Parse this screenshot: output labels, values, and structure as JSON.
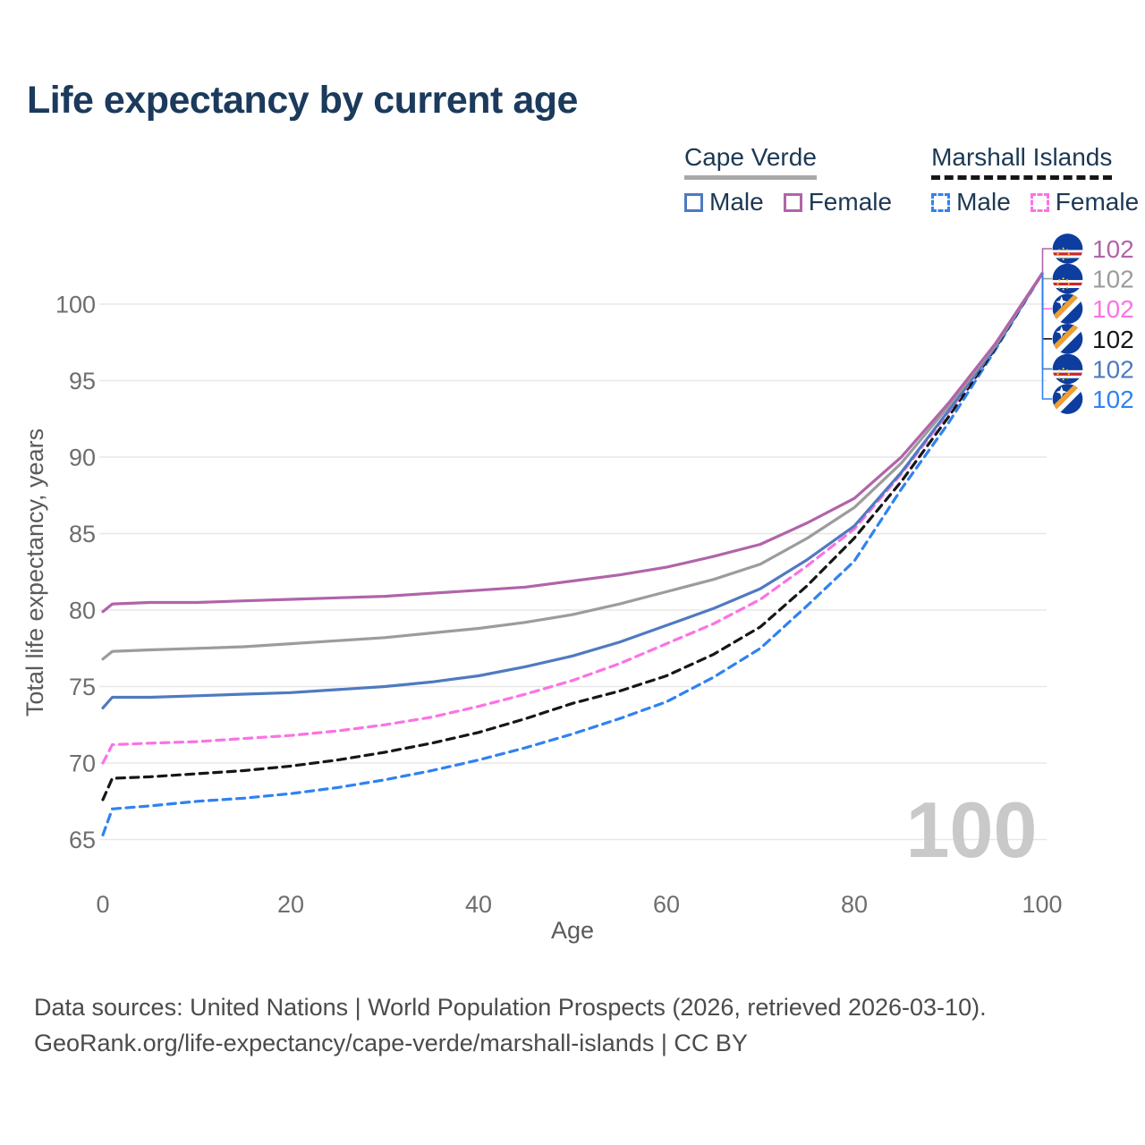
{
  "title": "Life expectancy by current age",
  "legend": {
    "groups": [
      {
        "label": "Cape Verde",
        "underline_style": "solid",
        "underline_color": "#a8a8a8",
        "items": [
          {
            "label": "Male",
            "color": "#4e7ac0",
            "line_style": "solid"
          },
          {
            "label": "Female",
            "color": "#b164a9",
            "line_style": "solid"
          }
        ]
      },
      {
        "label": "Marshall Islands",
        "underline_style": "dashed",
        "underline_color": "#161616",
        "items": [
          {
            "label": "Male",
            "color": "#2f82f2",
            "line_style": "dashed"
          },
          {
            "label": "Female",
            "color": "#fc72e4",
            "line_style": "dashed"
          }
        ]
      }
    ]
  },
  "chart_data": {
    "type": "line",
    "title": "Life expectancy by current age",
    "xlabel": "Age",
    "ylabel": "Total life expectancy, years",
    "xlim": [
      0,
      100
    ],
    "ylim": [
      65,
      100
    ],
    "x_ticks": [
      0,
      20,
      40,
      60,
      80,
      100
    ],
    "y_ticks": [
      65,
      70,
      75,
      80,
      85,
      90,
      95,
      100
    ],
    "grid": "horizontal",
    "legend_position": "top-right",
    "x": [
      0,
      1,
      5,
      10,
      15,
      20,
      25,
      30,
      35,
      40,
      45,
      50,
      55,
      60,
      65,
      70,
      75,
      80,
      85,
      90,
      95,
      100
    ],
    "series": [
      {
        "id": "mi_male",
        "name": "Marshall Islands Male",
        "country": "Marshall Islands",
        "sex": "Male",
        "color": "#2f82f2",
        "line_style": "dashed",
        "flag": "marshall-islands",
        "end_label": "102",
        "values": [
          65.3,
          67.0,
          67.2,
          67.5,
          67.7,
          68.0,
          68.4,
          68.9,
          69.5,
          70.2,
          71.0,
          71.9,
          72.9,
          74.0,
          75.6,
          77.5,
          80.3,
          83.2,
          87.9,
          92.2,
          97.0,
          102
        ]
      },
      {
        "id": "mi_total",
        "name": "Marshall Islands Total",
        "country": "Marshall Islands",
        "sex": "Both sexes",
        "color": "#161616",
        "line_style": "dashed",
        "flag": "marshall-islands",
        "end_label": "102",
        "values": [
          67.6,
          69.0,
          69.1,
          69.3,
          69.5,
          69.8,
          70.2,
          70.7,
          71.3,
          72.0,
          72.9,
          73.9,
          74.7,
          75.7,
          77.1,
          78.9,
          81.6,
          84.7,
          88.4,
          92.6,
          97.1,
          102
        ]
      },
      {
        "id": "mi_female",
        "name": "Marshall Islands Female",
        "country": "Marshall Islands",
        "sex": "Female",
        "color": "#fc72e4",
        "line_style": "dashed",
        "flag": "marshall-islands",
        "end_label": "102",
        "values": [
          70.0,
          71.2,
          71.3,
          71.4,
          71.6,
          71.8,
          72.1,
          72.5,
          73.0,
          73.7,
          74.5,
          75.4,
          76.5,
          77.8,
          79.1,
          80.7,
          82.9,
          85.3,
          88.9,
          92.9,
          97.2,
          102
        ]
      },
      {
        "id": "cv_male",
        "name": "Cape Verde Male",
        "country": "Cape Verde",
        "sex": "Male",
        "color": "#4e7ac0",
        "line_style": "solid",
        "flag": "cape-verde",
        "end_label": "102",
        "values": [
          73.6,
          74.3,
          74.3,
          74.4,
          74.5,
          74.6,
          74.8,
          75.0,
          75.3,
          75.7,
          76.3,
          77.0,
          77.9,
          79.0,
          80.1,
          81.4,
          83.3,
          85.5,
          89.0,
          93.0,
          97.2,
          102
        ]
      },
      {
        "id": "cv_total",
        "name": "Cape Verde Total",
        "country": "Cape Verde",
        "sex": "Both sexes",
        "color": "#9c9c9c",
        "line_style": "solid",
        "flag": "cape-verde",
        "end_label": "102",
        "values": [
          76.8,
          77.3,
          77.4,
          77.5,
          77.6,
          77.8,
          78.0,
          78.2,
          78.5,
          78.8,
          79.2,
          79.7,
          80.4,
          81.2,
          82.0,
          83.0,
          84.7,
          86.7,
          89.6,
          93.3,
          97.3,
          102
        ]
      },
      {
        "id": "cv_female",
        "name": "Cape Verde Female",
        "country": "Cape Verde",
        "sex": "Female",
        "color": "#b164a9",
        "line_style": "solid",
        "flag": "cape-verde",
        "end_label": "102",
        "values": [
          79.9,
          80.4,
          80.5,
          80.5,
          80.6,
          80.7,
          80.8,
          80.9,
          81.1,
          81.3,
          81.5,
          81.9,
          82.3,
          82.8,
          83.5,
          84.3,
          85.7,
          87.3,
          90.0,
          93.5,
          97.4,
          102
        ]
      }
    ],
    "annotation_order": [
      "cv_female",
      "cv_total",
      "mi_female",
      "mi_total",
      "cv_male",
      "mi_male"
    ]
  },
  "watermark": "100",
  "footer": {
    "line1": "Data sources: United Nations | World Population Prospects (2026, retrieved 2026-03-10).",
    "line2": "GeoRank.org/life-expectancy/cape-verde/marshall-islands | CC BY"
  }
}
